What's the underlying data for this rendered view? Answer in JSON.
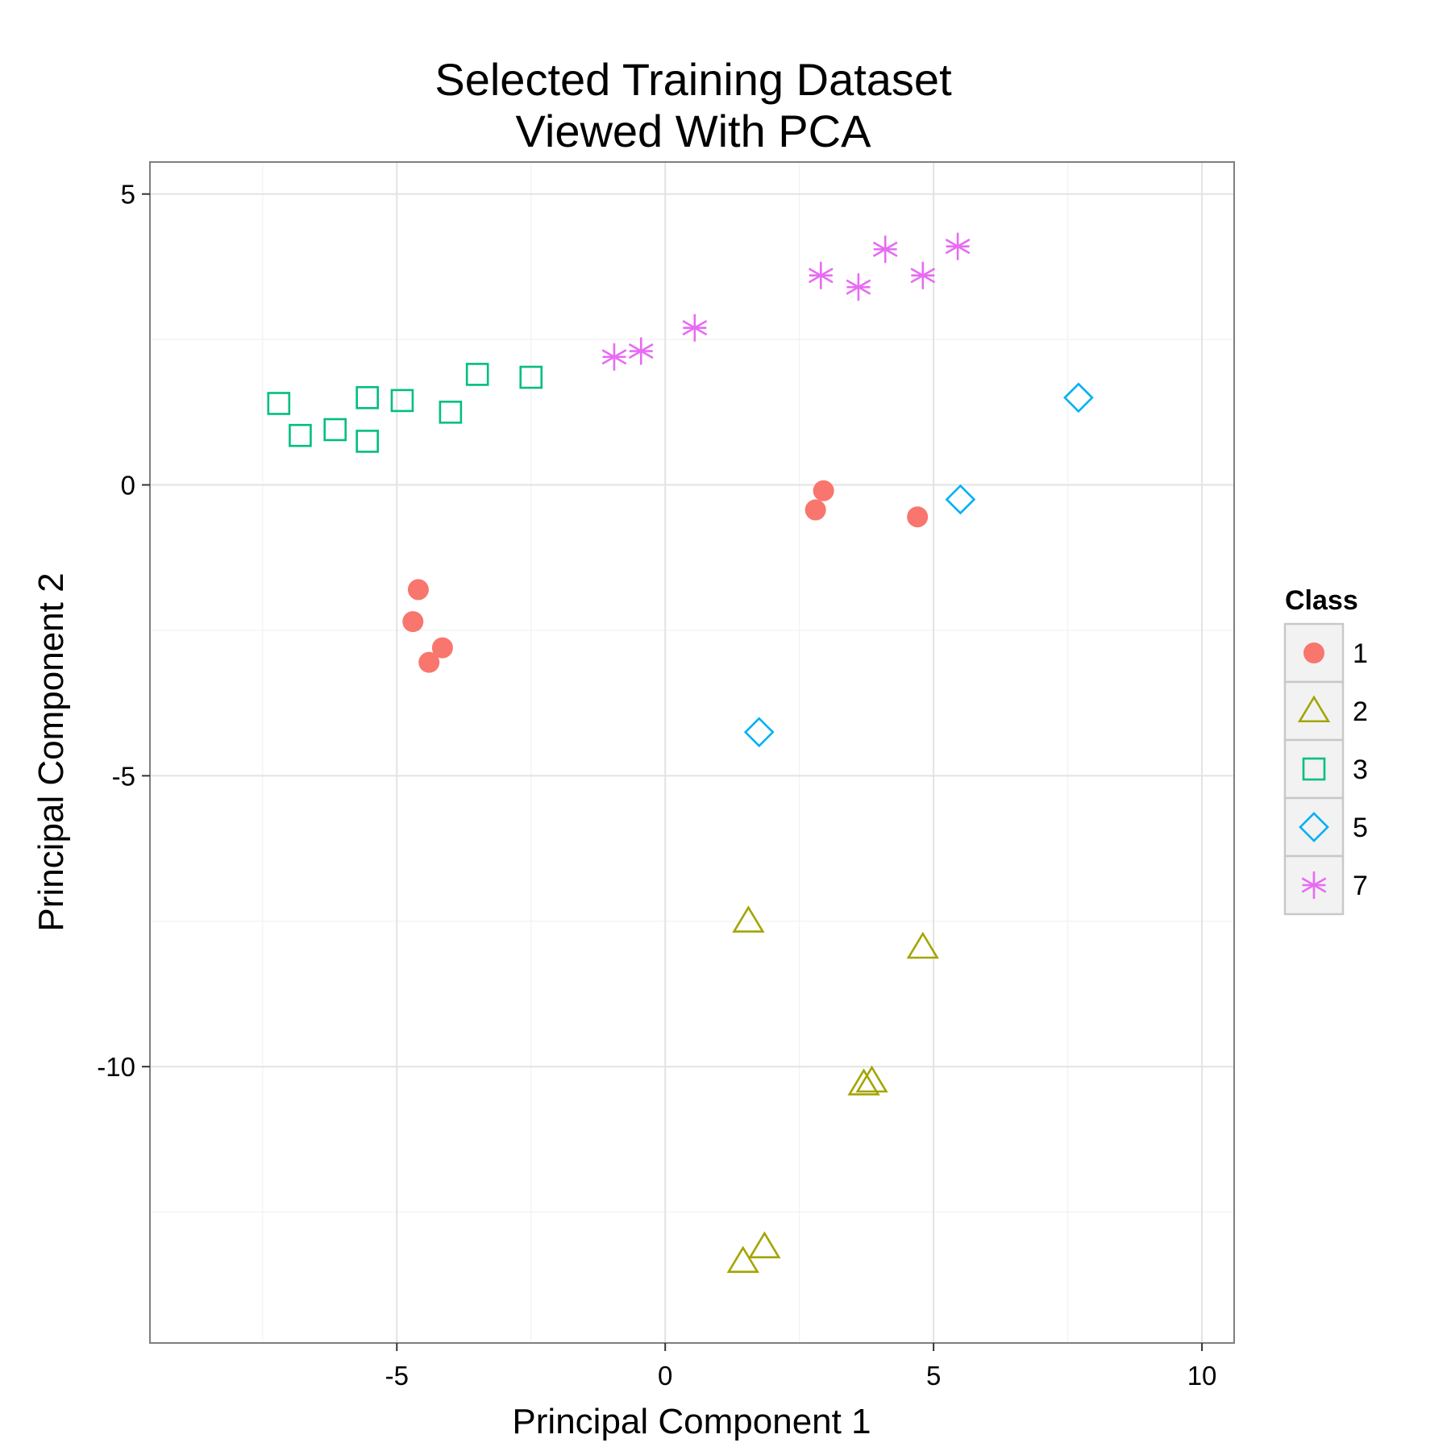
{
  "chart_data": {
    "type": "scatter",
    "title": [
      "Selected Training Dataset",
      "Viewed With PCA"
    ],
    "xlabel": "Principal Component 1",
    "ylabel": "Principal Component 2",
    "xlim": [
      -9.6,
      10.6
    ],
    "ylim": [
      -14.75,
      5.55
    ],
    "xticks": [
      -5,
      0,
      5,
      10
    ],
    "yticks": [
      5,
      0,
      -5,
      -10
    ],
    "xtick_labels": [
      "-5",
      "0",
      "5",
      "10"
    ],
    "ytick_labels": [
      "5",
      "0",
      "-5",
      "-10"
    ],
    "grid": true,
    "legend": {
      "title": "Class",
      "position": "right"
    },
    "series": [
      {
        "name": "1",
        "shape": "filled-circle",
        "color": "#F8766D",
        "points": [
          [
            -4.6,
            -1.8
          ],
          [
            -4.7,
            -2.35
          ],
          [
            -4.15,
            -2.8
          ],
          [
            -4.4,
            -3.05
          ],
          [
            2.8,
            -0.43
          ],
          [
            2.95,
            -0.1
          ],
          [
            4.7,
            -0.55
          ]
        ]
      },
      {
        "name": "2",
        "shape": "triangle",
        "color": "#A3A500",
        "points": [
          [
            1.55,
            -7.5
          ],
          [
            4.8,
            -7.95
          ],
          [
            3.7,
            -10.3
          ],
          [
            3.85,
            -10.25
          ],
          [
            1.45,
            -13.35
          ],
          [
            1.85,
            -13.1
          ]
        ]
      },
      {
        "name": "3",
        "shape": "square",
        "color": "#00BF7D",
        "points": [
          [
            -7.2,
            1.4
          ],
          [
            -6.8,
            0.85
          ],
          [
            -6.15,
            0.95
          ],
          [
            -5.55,
            0.75
          ],
          [
            -5.55,
            1.5
          ],
          [
            -4.9,
            1.45
          ],
          [
            -4.0,
            1.25
          ],
          [
            -3.5,
            1.9
          ],
          [
            -2.5,
            1.85
          ]
        ]
      },
      {
        "name": "5",
        "shape": "diamond",
        "color": "#00B0F6",
        "points": [
          [
            1.75,
            -4.25
          ],
          [
            5.5,
            -0.25
          ],
          [
            7.7,
            1.5
          ]
        ]
      },
      {
        "name": "7",
        "shape": "asterisk",
        "color": "#E76BF3",
        "points": [
          [
            -0.95,
            2.2
          ],
          [
            -0.45,
            2.3
          ],
          [
            0.55,
            2.7
          ],
          [
            2.9,
            3.6
          ],
          [
            3.6,
            3.4
          ],
          [
            4.1,
            4.05
          ],
          [
            4.8,
            3.6
          ],
          [
            5.45,
            4.1
          ]
        ]
      }
    ]
  }
}
